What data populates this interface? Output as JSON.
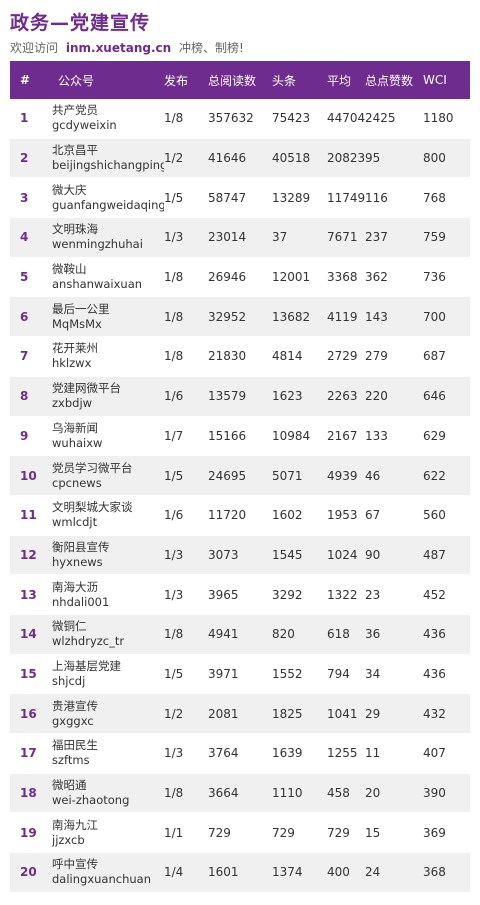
{
  "header": {
    "title": "政务—党建宣传",
    "subtitle_prefix": "欢迎访问",
    "site": "inm.xuetang.cn",
    "subtitle_suffix": "冲榜、制榜!"
  },
  "table": {
    "columns": [
      "#",
      "公众号",
      "发布",
      "总阅读数",
      "头条",
      "平均",
      "总点赞数",
      "WCI"
    ],
    "rows": [
      {
        "rank": "1",
        "name": "共产党员",
        "id": "gcdyweixin",
        "pub": "1/8",
        "reads": "357632",
        "headline": "75423",
        "avg": "44704",
        "likes": "2425",
        "wci": "1180"
      },
      {
        "rank": "2",
        "name": "北京昌平",
        "id": "beijingshichangping",
        "pub": "1/2",
        "reads": "41646",
        "headline": "40518",
        "avg": "20823",
        "likes": "95",
        "wci": "800"
      },
      {
        "rank": "3",
        "name": "微大庆",
        "id": "guanfangweidaqing",
        "pub": "1/5",
        "reads": "58747",
        "headline": "13289",
        "avg": "11749",
        "likes": "116",
        "wci": "768"
      },
      {
        "rank": "4",
        "name": "文明珠海",
        "id": "wenmingzhuhai",
        "pub": "1/3",
        "reads": "23014",
        "headline": "37",
        "avg": "7671",
        "likes": "237",
        "wci": "759"
      },
      {
        "rank": "5",
        "name": "微鞍山",
        "id": "anshanwaixuan",
        "pub": "1/8",
        "reads": "26946",
        "headline": "12001",
        "avg": "3368",
        "likes": "362",
        "wci": "736"
      },
      {
        "rank": "6",
        "name": "最后一公里",
        "id": "MqMsMx",
        "pub": "1/8",
        "reads": "32952",
        "headline": "13682",
        "avg": "4119",
        "likes": "143",
        "wci": "700"
      },
      {
        "rank": "7",
        "name": "花开莱州",
        "id": "hklzwx",
        "pub": "1/8",
        "reads": "21830",
        "headline": "4814",
        "avg": "2729",
        "likes": "279",
        "wci": "687"
      },
      {
        "rank": "8",
        "name": "党建网微平台",
        "id": "zxbdjw",
        "pub": "1/6",
        "reads": "13579",
        "headline": "1623",
        "avg": "2263",
        "likes": "220",
        "wci": "646"
      },
      {
        "rank": "9",
        "name": "乌海新闻",
        "id": "wuhaixw",
        "pub": "1/7",
        "reads": "15166",
        "headline": "10984",
        "avg": "2167",
        "likes": "133",
        "wci": "629"
      },
      {
        "rank": "10",
        "name": "党员学习微平台",
        "id": "cpcnews",
        "pub": "1/5",
        "reads": "24695",
        "headline": "5071",
        "avg": "4939",
        "likes": "46",
        "wci": "622"
      },
      {
        "rank": "11",
        "name": "文明梨城大家谈",
        "id": "wmlcdjt",
        "pub": "1/6",
        "reads": "11720",
        "headline": "1602",
        "avg": "1953",
        "likes": "67",
        "wci": "560"
      },
      {
        "rank": "12",
        "name": "衡阳县宣传",
        "id": "hyxnews",
        "pub": "1/3",
        "reads": "3073",
        "headline": "1545",
        "avg": "1024",
        "likes": "90",
        "wci": "487"
      },
      {
        "rank": "13",
        "name": "南海大沥",
        "id": "nhdali001",
        "pub": "1/3",
        "reads": "3965",
        "headline": "3292",
        "avg": "1322",
        "likes": "23",
        "wci": "452"
      },
      {
        "rank": "14",
        "name": "微铜仁",
        "id": "wlzhdryzc_tr",
        "pub": "1/8",
        "reads": "4941",
        "headline": "820",
        "avg": "618",
        "likes": "36",
        "wci": "436"
      },
      {
        "rank": "15",
        "name": "上海基层党建",
        "id": "shjcdj",
        "pub": "1/5",
        "reads": "3971",
        "headline": "1552",
        "avg": "794",
        "likes": "34",
        "wci": "436"
      },
      {
        "rank": "16",
        "name": "贵港宣传",
        "id": "gxggxc",
        "pub": "1/2",
        "reads": "2081",
        "headline": "1825",
        "avg": "1041",
        "likes": "29",
        "wci": "432"
      },
      {
        "rank": "17",
        "name": "福田民生",
        "id": "szftms",
        "pub": "1/3",
        "reads": "3764",
        "headline": "1639",
        "avg": "1255",
        "likes": "11",
        "wci": "407"
      },
      {
        "rank": "18",
        "name": "微昭通",
        "id": "wei-zhaotong",
        "pub": "1/8",
        "reads": "3664",
        "headline": "1110",
        "avg": "458",
        "likes": "20",
        "wci": "390"
      },
      {
        "rank": "19",
        "name": "南海九江",
        "id": "jjzxcb",
        "pub": "1/1",
        "reads": "729",
        "headline": "729",
        "avg": "729",
        "likes": "15",
        "wci": "369"
      },
      {
        "rank": "20",
        "name": "呼中宣传",
        "id": "dalingxuanchuan",
        "pub": "1/4",
        "reads": "1601",
        "headline": "1374",
        "avg": "400",
        "likes": "24",
        "wci": "368"
      }
    ]
  }
}
